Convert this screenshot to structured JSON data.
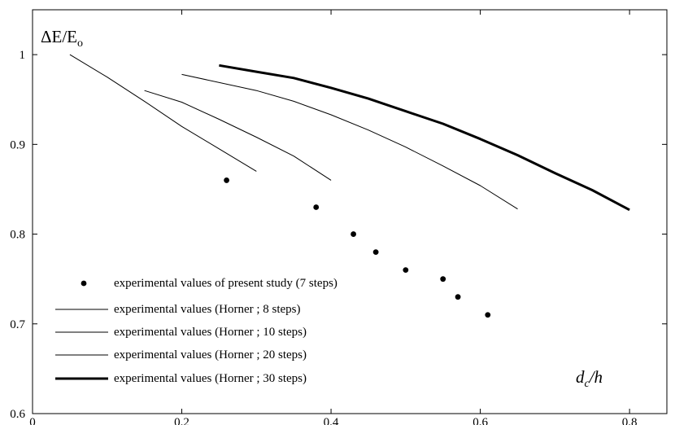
{
  "chart_data": {
    "type": "line",
    "x_axis": {
      "label_main": "d",
      "label_sub": "c",
      "label_rest": "/h",
      "lim": [
        0,
        0.85
      ],
      "ticks": [
        0,
        0.2,
        0.4,
        0.6,
        0.8
      ],
      "tick_labels": [
        "0",
        "0.2",
        "0.4",
        "0.6",
        "0.8"
      ]
    },
    "y_axis": {
      "label_main": "ΔE/E",
      "label_sub": "o",
      "lim": [
        0.6,
        1.05
      ],
      "ticks": [
        0.6,
        0.7,
        0.8,
        0.9,
        1.0
      ],
      "tick_labels": [
        "0.6",
        "0.7",
        "0.8",
        "0.9",
        "1"
      ]
    },
    "grid": false,
    "legend_position": "bottom-left",
    "series": [
      {
        "name": "experimental  values of present study (7 steps)",
        "kind": "scatter",
        "color": "#000000",
        "x": [
          0.26,
          0.38,
          0.43,
          0.46,
          0.5,
          0.55,
          0.57,
          0.61
        ],
        "y": [
          0.86,
          0.83,
          0.8,
          0.78,
          0.76,
          0.75,
          0.73,
          0.71
        ]
      },
      {
        "name": "experimental  values  (Horner ; 8 steps)",
        "kind": "line",
        "stroke_weight": "thin",
        "color": "#000000",
        "x": [
          0.05,
          0.1,
          0.15,
          0.2,
          0.25,
          0.3
        ],
        "y": [
          1.0,
          0.975,
          0.948,
          0.92,
          0.895,
          0.87
        ]
      },
      {
        "name": "experimental  values  (Horner ; 10 steps)",
        "kind": "line",
        "stroke_weight": "thin",
        "color": "#000000",
        "x": [
          0.15,
          0.2,
          0.25,
          0.3,
          0.35,
          0.4
        ],
        "y": [
          0.96,
          0.947,
          0.928,
          0.908,
          0.887,
          0.86
        ]
      },
      {
        "name": "experimental  values  (Horner ; 20 steps)",
        "kind": "line",
        "stroke_weight": "thin",
        "color": "#000000",
        "x": [
          0.2,
          0.3,
          0.35,
          0.4,
          0.45,
          0.5,
          0.55,
          0.6,
          0.65
        ],
        "y": [
          0.978,
          0.96,
          0.948,
          0.933,
          0.916,
          0.897,
          0.876,
          0.854,
          0.828
        ]
      },
      {
        "name": "experimental  values  (Horner ; 30 steps)",
        "kind": "line",
        "stroke_weight": "thick",
        "color": "#000000",
        "x": [
          0.25,
          0.3,
          0.35,
          0.4,
          0.45,
          0.5,
          0.55,
          0.6,
          0.65,
          0.7,
          0.75,
          0.8
        ],
        "y": [
          0.988,
          0.981,
          0.974,
          0.963,
          0.951,
          0.937,
          0.923,
          0.906,
          0.888,
          0.868,
          0.849,
          0.827
        ]
      }
    ]
  }
}
